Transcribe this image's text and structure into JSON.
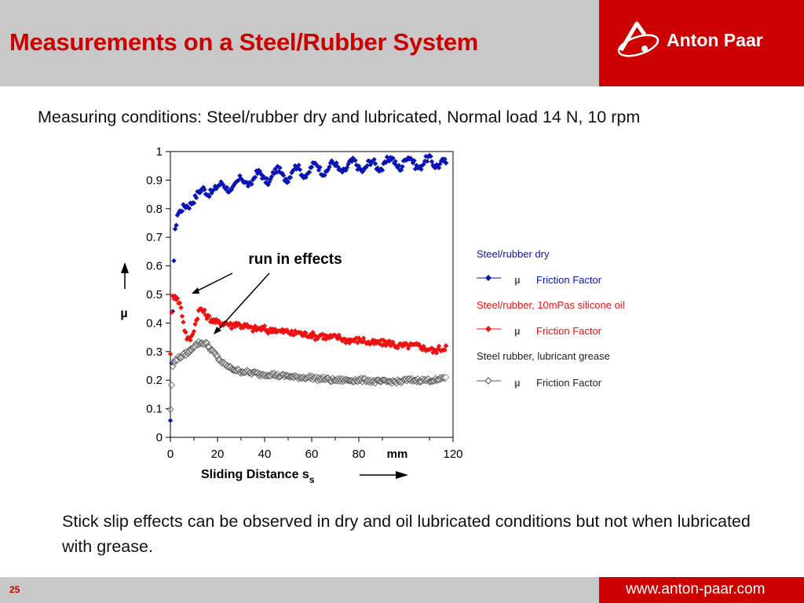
{
  "slide": {
    "title": "Measurements on a Steel/Rubber System",
    "logo_text": "Anton Paar",
    "conditions": "Measuring conditions: Steel/rubber dry and lubricated, Normal load 14 N, 10 rpm",
    "summary": "Stick slip effects can be observed in dry and oil lubricated conditions but not when lubricated with grease.",
    "page_number": "25",
    "footer_url": "www.anton-paar.com",
    "brand_color": "#cc0000"
  },
  "chart_data": {
    "type": "scatter",
    "xlim": [
      0,
      120
    ],
    "ylim": [
      0,
      1
    ],
    "xticks": [
      "0",
      "20",
      "40",
      "60",
      "80",
      "120"
    ],
    "x_unit": "mm",
    "yticks": [
      "0",
      "0.1",
      "0.2",
      "0.3",
      "0.4",
      "0.5",
      "0.6",
      "0.7",
      "0.8",
      "0.9",
      "1"
    ],
    "xlabel": "Sliding Distance s",
    "xlabel_sub": "s",
    "ylabel": "µ",
    "annotation": "run in effects",
    "grid": false,
    "legend_position": "right",
    "series": [
      {
        "group": "Steel/rubber dry",
        "name": "Friction Factor",
        "symbol": "µ",
        "color": "#0a14b4",
        "marker": "diamond-filled",
        "x": [
          0,
          0.5,
          1,
          1.5,
          2,
          3,
          4,
          5,
          6,
          8,
          10,
          12,
          14,
          16,
          18,
          20,
          22,
          24,
          26,
          28,
          30,
          32,
          34,
          36,
          38,
          40,
          42,
          44,
          46,
          48,
          50,
          52,
          54,
          56,
          58,
          60,
          62,
          64,
          66,
          68,
          70,
          72,
          74,
          76,
          78,
          80,
          82,
          84,
          86,
          88,
          90,
          92,
          94,
          96,
          98,
          100,
          102,
          104,
          106,
          108,
          110,
          112,
          114,
          116,
          117
        ],
        "y": [
          0.05,
          0.25,
          0.45,
          0.62,
          0.72,
          0.78,
          0.79,
          0.8,
          0.81,
          0.81,
          0.83,
          0.86,
          0.87,
          0.85,
          0.86,
          0.88,
          0.89,
          0.87,
          0.86,
          0.89,
          0.91,
          0.89,
          0.88,
          0.92,
          0.93,
          0.9,
          0.89,
          0.93,
          0.94,
          0.91,
          0.9,
          0.94,
          0.95,
          0.92,
          0.91,
          0.95,
          0.96,
          0.93,
          0.92,
          0.96,
          0.96,
          0.93,
          0.93,
          0.96,
          0.97,
          0.94,
          0.93,
          0.96,
          0.97,
          0.94,
          0.94,
          0.97,
          0.98,
          0.95,
          0.94,
          0.98,
          0.98,
          0.95,
          0.94,
          0.97,
          0.98,
          0.95,
          0.95,
          0.97,
          0.96
        ]
      },
      {
        "group": "Steel/rubber, 10mPas silicone oil",
        "name": "Friction Factor",
        "symbol": "µ",
        "color": "#ee1111",
        "marker": "diamond-filled",
        "x": [
          0,
          0.5,
          1,
          2,
          3,
          4,
          5,
          6,
          7,
          8,
          9,
          10,
          11,
          12,
          13,
          14,
          15,
          16,
          18,
          20,
          22,
          24,
          26,
          28,
          30,
          32,
          34,
          36,
          38,
          40,
          42,
          44,
          46,
          48,
          50,
          52,
          54,
          56,
          58,
          60,
          62,
          64,
          66,
          68,
          70,
          72,
          74,
          76,
          78,
          80,
          82,
          84,
          86,
          88,
          90,
          92,
          94,
          96,
          98,
          100,
          102,
          104,
          106,
          108,
          110,
          112,
          114,
          116,
          117
        ],
        "y": [
          0.3,
          0.43,
          0.49,
          0.5,
          0.48,
          0.47,
          0.43,
          0.38,
          0.35,
          0.34,
          0.35,
          0.38,
          0.41,
          0.44,
          0.45,
          0.44,
          0.43,
          0.42,
          0.41,
          0.4,
          0.4,
          0.4,
          0.39,
          0.4,
          0.39,
          0.39,
          0.38,
          0.38,
          0.38,
          0.38,
          0.37,
          0.38,
          0.37,
          0.37,
          0.37,
          0.36,
          0.37,
          0.36,
          0.36,
          0.36,
          0.35,
          0.36,
          0.35,
          0.35,
          0.35,
          0.35,
          0.34,
          0.34,
          0.34,
          0.34,
          0.34,
          0.33,
          0.33,
          0.33,
          0.33,
          0.33,
          0.33,
          0.32,
          0.32,
          0.32,
          0.32,
          0.32,
          0.32,
          0.31,
          0.31,
          0.3,
          0.31,
          0.31,
          0.32
        ]
      },
      {
        "group": "Steel rubber, lubricant grease",
        "name": "Friction Factor",
        "symbol": "µ",
        "color": "#555555",
        "marker": "diamond-open",
        "x": [
          0,
          0.5,
          1,
          2,
          4,
          6,
          8,
          10,
          12,
          14,
          15,
          16,
          17,
          18,
          20,
          22,
          24,
          26,
          28,
          30,
          32,
          34,
          36,
          38,
          40,
          42,
          44,
          46,
          48,
          50,
          52,
          54,
          56,
          58,
          60,
          62,
          64,
          66,
          68,
          70,
          72,
          74,
          76,
          78,
          80,
          82,
          84,
          86,
          88,
          90,
          92,
          94,
          96,
          98,
          100,
          102,
          104,
          106,
          108,
          110,
          112,
          114,
          116,
          117
        ],
        "y": [
          0.1,
          0.18,
          0.25,
          0.27,
          0.28,
          0.29,
          0.3,
          0.32,
          0.33,
          0.33,
          0.33,
          0.32,
          0.31,
          0.3,
          0.28,
          0.26,
          0.25,
          0.24,
          0.235,
          0.23,
          0.23,
          0.225,
          0.225,
          0.22,
          0.22,
          0.22,
          0.22,
          0.215,
          0.215,
          0.215,
          0.21,
          0.21,
          0.21,
          0.21,
          0.21,
          0.205,
          0.205,
          0.205,
          0.2,
          0.2,
          0.2,
          0.2,
          0.2,
          0.2,
          0.2,
          0.2,
          0.2,
          0.195,
          0.195,
          0.195,
          0.195,
          0.195,
          0.195,
          0.195,
          0.2,
          0.2,
          0.2,
          0.2,
          0.2,
          0.2,
          0.2,
          0.2,
          0.21,
          0.21
        ]
      }
    ]
  }
}
